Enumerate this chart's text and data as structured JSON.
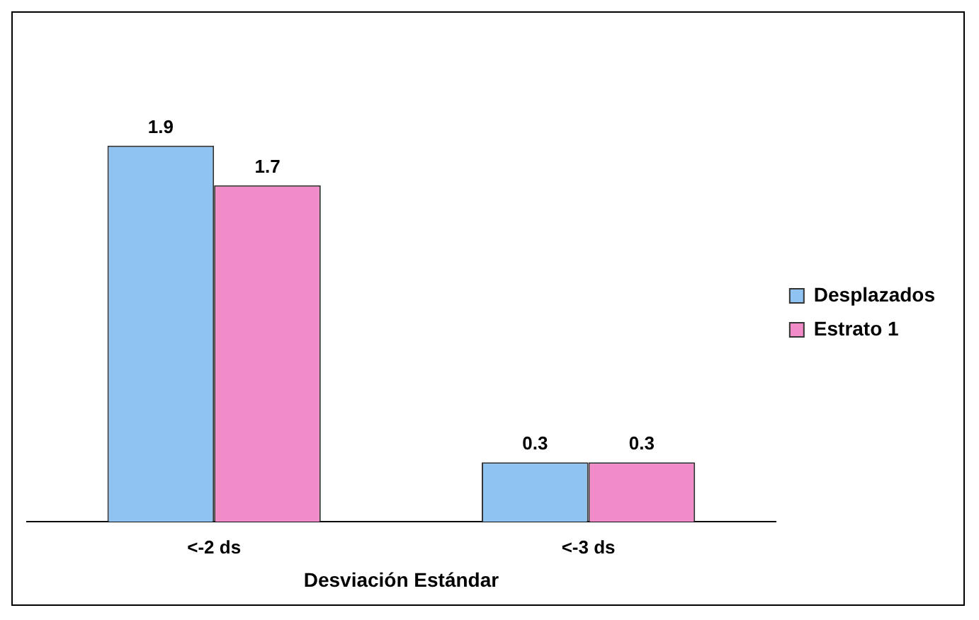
{
  "chart_data": {
    "type": "bar",
    "xlabel": "Desviación Estándar",
    "categories": [
      "<-2 ds",
      "<-3 ds"
    ],
    "series": [
      {
        "name": "Desplazados",
        "color": "#8ec3f2",
        "values": [
          1.9,
          0.3
        ]
      },
      {
        "name": "Estrato 1",
        "color": "#f28cc8",
        "values": [
          1.7,
          0.3
        ]
      }
    ],
    "data_labels": true,
    "legend": "right",
    "grid": false,
    "tick_labels": "x"
  }
}
